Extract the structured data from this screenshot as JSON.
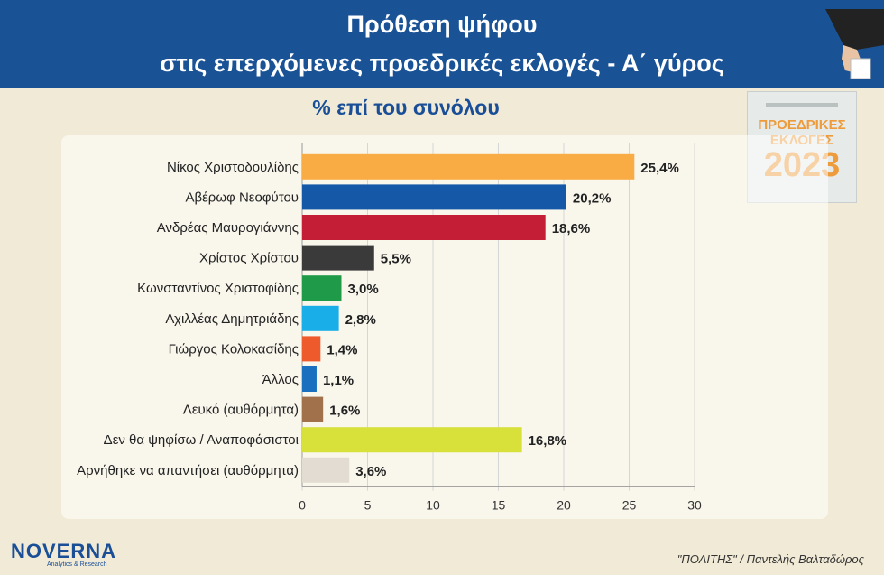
{
  "header": {
    "title_line1": "Πρόθεση ψήφου",
    "title_line2": "στις επερχόμενες προεδρικές εκλογές - Α΄ γύρος",
    "subtitle": "% επί του συνόλου"
  },
  "badge": {
    "line1": "ΠΡΟΕΔΡΙΚΕΣ",
    "line2": "ΕΚΛΟΓΕΣ",
    "year": "2023"
  },
  "footer": {
    "logo": "NOVERNA",
    "logo_tagline": "Analytics & Research",
    "credit": "\"ΠΟΛΙΤΗΣ\" / Παντελής Βαλταδώρος"
  },
  "chart_data": {
    "type": "bar",
    "orientation": "horizontal",
    "categories": [
      "Νίκος Χριστοδουλίδης",
      "Αβέρωφ Νεοφύτου",
      "Ανδρέας Μαυρογιάννης",
      "Χρίστος Χρίστου",
      "Κωνσταντίνος Χριστοφίδης",
      "Αχιλλέας Δημητριάδης",
      "Γιώργος Κολοκασίδης",
      "Άλλος",
      "Λευκό (αυθόρμητα)",
      "Δεν θα ψηφίσω / Αναποφάσιστοι",
      "Αρνήθηκε να απαντήσει (αυθόρμητα)"
    ],
    "values": [
      25.4,
      20.2,
      18.6,
      5.5,
      3.0,
      2.8,
      1.4,
      1.1,
      1.6,
      16.8,
      3.6
    ],
    "value_labels": [
      "25,4%",
      "20,2%",
      "18,6%",
      "5,5%",
      "3,0%",
      "2,8%",
      "1,4%",
      "1,1%",
      "1,6%",
      "16,8%",
      "3,6%"
    ],
    "colors": [
      "#f9ac44",
      "#1558a8",
      "#c41e36",
      "#3a3a3a",
      "#1e9a48",
      "#19aee8",
      "#ef5a2c",
      "#1a6fbf",
      "#a0714a",
      "#d8e03a",
      "#e2dcd2"
    ],
    "xticks": [
      "0",
      "5",
      "10",
      "15",
      "20",
      "25",
      "30"
    ],
    "xlim": [
      0,
      30
    ],
    "grid": true
  }
}
